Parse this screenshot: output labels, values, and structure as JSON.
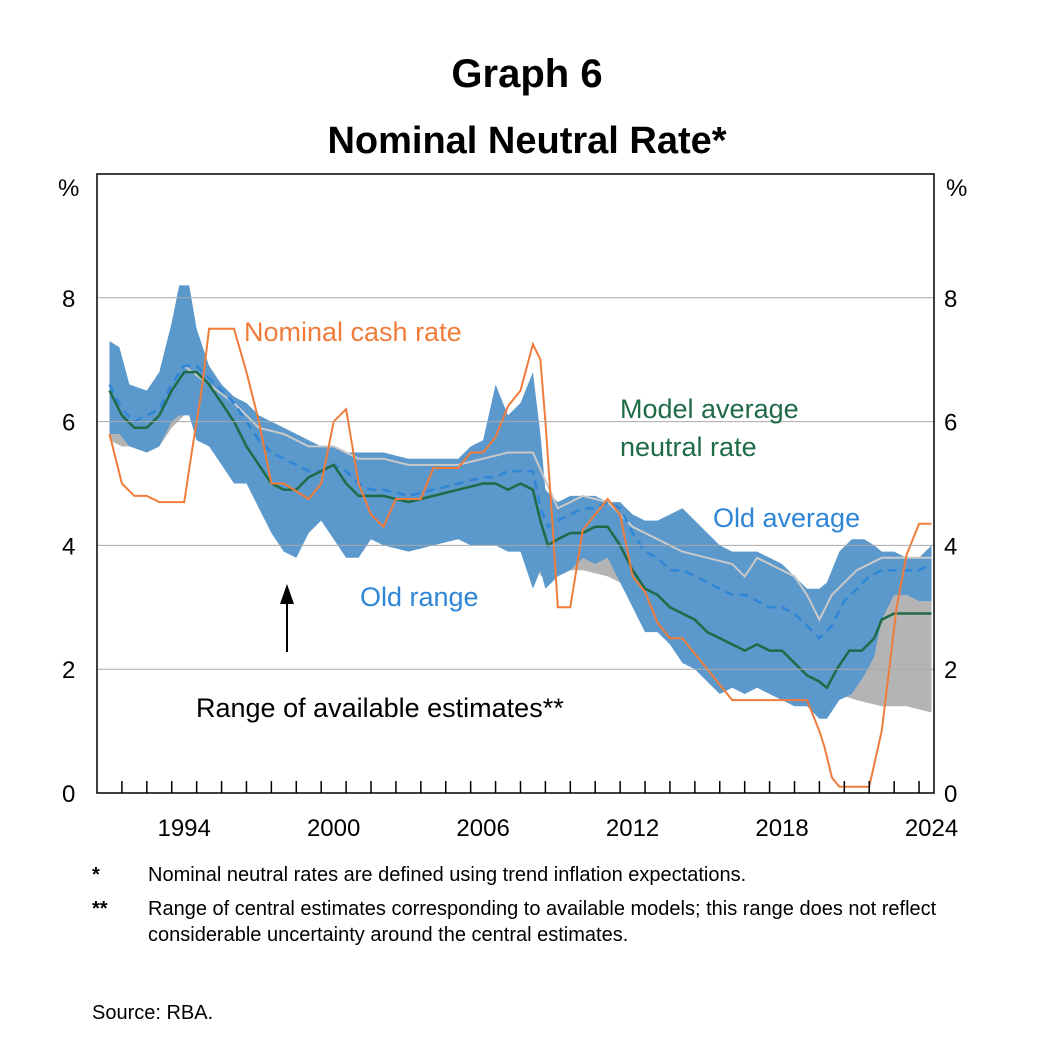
{
  "header": {
    "graph_label": "Graph 6",
    "title": "Nominal Neutral Rate*"
  },
  "notes": [
    {
      "mark": "*",
      "text": "Nominal neutral rates are defined using trend inflation expectations."
    },
    {
      "mark": "**",
      "text": "Range of central estimates corresponding to available models; this range does not reflect considerable uncertainty around the central estimates."
    }
  ],
  "source": "Source:   RBA.",
  "colors": {
    "cash": "#f07c3c",
    "model": "#1f6b47",
    "old_avg": "#2f86d6",
    "old_range": "#5b98cc",
    "range": "#b4b4b4",
    "grid": "#a9a9a9"
  },
  "chart_data": {
    "type": "line",
    "title": "Nominal Neutral Rate*",
    "ylabel": "%",
    "ylim": [
      0,
      10
    ],
    "yticks": [
      0,
      2,
      4,
      6,
      8
    ],
    "xlim": [
      1990.5,
      2024.1
    ],
    "xticks": [
      1994,
      2000,
      2006,
      2012,
      2018,
      2024
    ],
    "xtick_labels": [
      "1994",
      "2000",
      "2006",
      "2012",
      "2018",
      "2024"
    ],
    "annotations": {
      "cash": "Nominal cash rate",
      "model_line1": "Model average",
      "model_line2": "neutral rate",
      "old_avg": "Old average",
      "old_range": "Old range",
      "range": "Range of available estimates**"
    },
    "series": [
      {
        "name": "Old range",
        "kind": "band",
        "x": [
          1991,
          1991.4,
          1991.8,
          1992.5,
          1993,
          1993.5,
          1993.8,
          1994.2,
          1994.5,
          1995,
          1995.5,
          1996,
          1996.5,
          1997,
          1997.5,
          1998,
          1998.5,
          1999,
          1999.5,
          2000,
          2000.5,
          2001,
          2001.5,
          2002,
          2003,
          2004,
          2005,
          2005.5,
          2006,
          2006.5,
          2007,
          2007.5,
          2008,
          2008.3,
          2008.5,
          2009,
          2009.5,
          2010,
          2010.5,
          2011,
          2011.5,
          2012,
          2012.5,
          2013,
          2013.5,
          2014,
          2014.5,
          2015,
          2015.5,
          2016,
          2016.5,
          2017,
          2017.5,
          2018,
          2018.5,
          2019,
          2019.5,
          2019.8,
          2020.3,
          2020.8,
          2021.3,
          2021.7,
          2022,
          2022.5,
          2023,
          2023.5,
          2024
        ],
        "lower": [
          5.8,
          5.8,
          5.6,
          5.5,
          5.6,
          6,
          6.1,
          6.1,
          5.7,
          5.6,
          5.3,
          5.0,
          5.0,
          4.6,
          4.2,
          3.9,
          3.8,
          4.2,
          4.4,
          4.1,
          3.8,
          3.8,
          4.1,
          4.0,
          3.9,
          4.0,
          4.1,
          4.0,
          4.0,
          4.0,
          3.9,
          3.9,
          3.3,
          3.6,
          3.3,
          3.5,
          3.6,
          3.8,
          3.7,
          3.8,
          3.4,
          3.0,
          2.6,
          2.6,
          2.4,
          2.1,
          2.0,
          1.8,
          1.6,
          1.7,
          1.6,
          1.7,
          1.6,
          1.5,
          1.4,
          1.4,
          1.2,
          1.2,
          1.5,
          1.6,
          1.9,
          2.2,
          2.8,
          3.2,
          3.2,
          3.1,
          3.1
        ],
        "upper": [
          7.3,
          7.2,
          6.6,
          6.5,
          6.8,
          7.6,
          8.2,
          8.2,
          7.5,
          6.9,
          6.6,
          6.4,
          6.3,
          6.1,
          6.0,
          5.9,
          5.8,
          5.7,
          5.6,
          5.6,
          5.5,
          5.5,
          5.5,
          5.5,
          5.4,
          5.4,
          5.4,
          5.6,
          5.7,
          6.6,
          6.1,
          6.3,
          6.8,
          5.8,
          4.9,
          4.7,
          4.8,
          4.8,
          4.8,
          4.7,
          4.7,
          4.5,
          4.4,
          4.4,
          4.5,
          4.6,
          4.4,
          4.2,
          4.0,
          3.9,
          3.9,
          3.9,
          3.8,
          3.7,
          3.5,
          3.3,
          3.3,
          3.4,
          3.9,
          4.1,
          4.1,
          4.0,
          3.9,
          3.9,
          3.8,
          3.8,
          4.0
        ]
      },
      {
        "name": "Range of available estimates",
        "kind": "band",
        "x": [
          1991,
          1991.5,
          1992,
          1992.5,
          1993,
          1993.5,
          1994,
          1994.5,
          1995,
          1996,
          2000,
          2008,
          2008.3,
          2009,
          2010,
          2011,
          2012,
          2013,
          2014,
          2015,
          2016,
          2017,
          2018,
          2018.8,
          2019.3,
          2019.8,
          2020.2,
          2021,
          2022,
          2023,
          2024
        ],
        "lower": [
          5.7,
          5.6,
          5.6,
          5.5,
          5.6,
          5.9,
          6.1,
          6.2,
          6.0,
          5.5,
          5.0,
          4.0,
          3.5,
          3.6,
          3.6,
          3.5,
          3.3,
          3.1,
          2.9,
          2.7,
          2.5,
          2.4,
          2.3,
          2.2,
          2.1,
          1.8,
          1.6,
          1.5,
          1.4,
          1.4,
          1.3
        ],
        "upper": [
          6.0,
          6.0,
          6.0,
          6.0,
          6.1,
          6.4,
          6.7,
          6.7,
          6.4,
          6.0,
          5.4,
          4.6,
          4.4,
          4.2,
          4.1,
          4.0,
          3.8,
          3.7,
          3.5,
          3.4,
          3.2,
          3.2,
          3.2,
          2.9,
          2.8,
          2.8,
          2.8,
          2.9,
          3.3,
          3.5,
          3.3
        ]
      },
      {
        "name": "Old average",
        "kind": "line",
        "x": [
          1991,
          1991.5,
          1992,
          1992.5,
          1993,
          1993.5,
          1994,
          1994.5,
          1995,
          1995.5,
          1996,
          1996.5,
          1997,
          1997.5,
          1998,
          1998.5,
          1999,
          1999.5,
          2000,
          2000.5,
          2001,
          2001.5,
          2002,
          2003,
          2004,
          2005,
          2006,
          2006.5,
          2007,
          2007.5,
          2008,
          2008.3,
          2008.6,
          2009,
          2009.5,
          2010,
          2010.5,
          2011,
          2011.5,
          2012,
          2012.5,
          2013,
          2013.5,
          2014,
          2014.5,
          2015,
          2015.5,
          2016,
          2016.5,
          2017,
          2017.5,
          2018,
          2018.5,
          2019,
          2019.5,
          2020,
          2020.5,
          2021,
          2021.5,
          2022,
          2022.5,
          2023,
          2023.5,
          2024
        ],
        "y": [
          6.6,
          6.2,
          6.0,
          6.1,
          6.2,
          6.6,
          6.9,
          6.9,
          6.7,
          6.5,
          6.3,
          6.0,
          5.7,
          5.5,
          5.4,
          5.3,
          5.2,
          5.2,
          5.3,
          5.2,
          5.0,
          4.9,
          4.9,
          4.8,
          4.9,
          5.0,
          5.1,
          5.1,
          5.2,
          5.2,
          5.2,
          4.6,
          4.3,
          4.4,
          4.5,
          4.6,
          4.6,
          4.7,
          4.6,
          4.2,
          3.9,
          3.8,
          3.6,
          3.6,
          3.5,
          3.4,
          3.3,
          3.2,
          3.2,
          3.1,
          3.0,
          3.0,
          2.9,
          2.7,
          2.5,
          2.7,
          3.1,
          3.3,
          3.5,
          3.6,
          3.6,
          3.6,
          3.6,
          3.7
        ]
      },
      {
        "name": "Old average (light)",
        "kind": "line",
        "x": [
          1994,
          1995,
          1996,
          1997,
          1998,
          1999,
          2000,
          2001,
          2002,
          2003,
          2004,
          2005,
          2006,
          2007,
          2008,
          2009,
          2010,
          2011,
          2012,
          2013,
          2014,
          2015,
          2016,
          2016.5,
          2017,
          2018,
          2018.5,
          2019,
          2019.5,
          2020,
          2021,
          2022,
          2023,
          2024
        ],
        "y": [
          6.9,
          6.6,
          6.3,
          5.9,
          5.8,
          5.6,
          5.6,
          5.4,
          5.4,
          5.3,
          5.3,
          5.3,
          5.4,
          5.5,
          5.5,
          4.6,
          4.8,
          4.7,
          4.3,
          4.1,
          3.9,
          3.8,
          3.7,
          3.5,
          3.8,
          3.6,
          3.5,
          3.2,
          2.8,
          3.2,
          3.6,
          3.8,
          3.8,
          3.8
        ]
      },
      {
        "name": "Model average neutral rate",
        "kind": "line",
        "x": [
          1991,
          1991.5,
          1992,
          1992.5,
          1993,
          1993.5,
          1994,
          1994.5,
          1995,
          1995.5,
          1996,
          1996.5,
          1997,
          1997.5,
          1998,
          1998.5,
          1999,
          1999.5,
          2000,
          2000.5,
          2001,
          2001.5,
          2002,
          2003,
          2004,
          2005,
          2006,
          2006.5,
          2007,
          2007.5,
          2008,
          2008.3,
          2008.6,
          2009,
          2009.5,
          2010,
          2010.5,
          2011,
          2011.5,
          2012,
          2012.5,
          2013,
          2013.5,
          2014,
          2014.5,
          2015,
          2015.5,
          2016,
          2016.5,
          2017,
          2017.5,
          2018,
          2018.5,
          2019,
          2019.5,
          2019.8,
          2020.2,
          2020.7,
          2021.2,
          2021.7,
          2022,
          2022.5,
          2023,
          2023.5,
          2024
        ],
        "y": [
          6.5,
          6.1,
          5.9,
          5.9,
          6.1,
          6.5,
          6.8,
          6.8,
          6.6,
          6.3,
          6.0,
          5.6,
          5.3,
          5.0,
          4.9,
          4.9,
          5.1,
          5.2,
          5.3,
          5.0,
          4.8,
          4.8,
          4.8,
          4.7,
          4.8,
          4.9,
          5.0,
          5.0,
          4.9,
          5.0,
          4.9,
          4.4,
          4.0,
          4.1,
          4.2,
          4.2,
          4.3,
          4.3,
          4.0,
          3.6,
          3.3,
          3.2,
          3.0,
          2.9,
          2.8,
          2.6,
          2.5,
          2.4,
          2.3,
          2.4,
          2.3,
          2.3,
          2.1,
          1.9,
          1.8,
          1.7,
          2.0,
          2.3,
          2.3,
          2.5,
          2.8,
          2.9,
          2.9,
          2.9,
          2.9
        ]
      },
      {
        "name": "Nominal cash rate",
        "kind": "line",
        "x": [
          1991,
          1991.5,
          1992,
          1992.5,
          1993,
          1993.5,
          1994,
          1994.3,
          1994.7,
          1995,
          1996,
          1996.5,
          1997,
          1997.5,
          1998,
          1999,
          1999.5,
          2000,
          2000.5,
          2001,
          2001.5,
          2002,
          2002.5,
          2003,
          2003.5,
          2004,
          2005,
          2005.5,
          2006,
          2006.5,
          2007,
          2007.5,
          2008,
          2008.3,
          2008.5,
          2008.8,
          2009,
          2009.5,
          2010,
          2010.5,
          2011,
          2011.5,
          2012,
          2012.5,
          2013,
          2013.5,
          2014,
          2015,
          2015.5,
          2016,
          2016.5,
          2017,
          2018,
          2019,
          2019.5,
          2019.7,
          2020,
          2020.3,
          2021,
          2021.5,
          2022,
          2022.3,
          2022.6,
          2023,
          2023.5,
          2024
        ],
        "y": [
          5.8,
          5.0,
          4.8,
          4.8,
          4.7,
          4.7,
          4.7,
          5.5,
          6.5,
          7.5,
          7.5,
          6.8,
          6.0,
          5.0,
          5.0,
          4.75,
          5.0,
          6.0,
          6.2,
          5.0,
          4.5,
          4.3,
          4.75,
          4.75,
          4.75,
          5.25,
          5.25,
          5.5,
          5.5,
          5.75,
          6.25,
          6.5,
          7.25,
          7.0,
          6.0,
          4.25,
          3.0,
          3.0,
          4.25,
          4.5,
          4.75,
          4.5,
          3.5,
          3.25,
          2.75,
          2.5,
          2.5,
          2.0,
          1.75,
          1.5,
          1.5,
          1.5,
          1.5,
          1.5,
          1.0,
          0.75,
          0.25,
          0.1,
          0.1,
          0.1,
          1.0,
          2.0,
          3.0,
          3.85,
          4.35,
          4.35
        ]
      }
    ]
  }
}
